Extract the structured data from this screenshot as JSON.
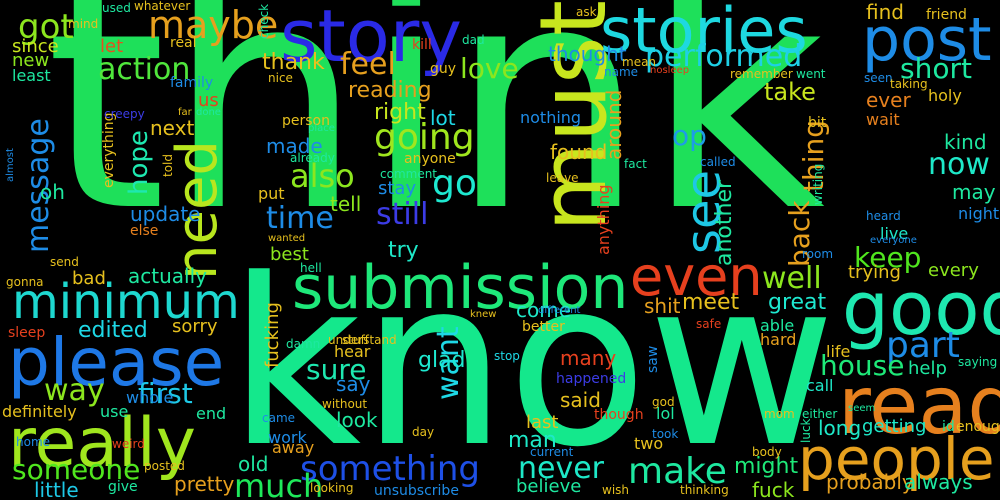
{
  "words": [
    {
      "t": "think",
      "c": "#1ee05a"
    },
    {
      "t": "know",
      "c": "#14e88c"
    },
    {
      "t": "must",
      "c": "#c8e61e"
    },
    {
      "t": "story",
      "c": "#2a2ae6"
    },
    {
      "t": "stories",
      "c": "#1ed8e0"
    },
    {
      "t": "post",
      "c": "#1e8ce6"
    },
    {
      "t": "submission",
      "c": "#1ee87a"
    },
    {
      "t": "minimum",
      "c": "#1ed8d0"
    },
    {
      "t": "please",
      "c": "#1e78e6"
    },
    {
      "t": "really",
      "c": "#a0e61e"
    },
    {
      "t": "good",
      "c": "#1ee8b0"
    },
    {
      "t": "read",
      "c": "#e6801e"
    },
    {
      "t": "people",
      "c": "#e6a01e"
    },
    {
      "t": "even",
      "c": "#e6401e"
    },
    {
      "t": "need",
      "c": "#b8e61e"
    },
    {
      "t": "see",
      "c": "#1ec8e6"
    },
    {
      "t": "maybe",
      "c": "#e6a01e"
    },
    {
      "t": "got",
      "c": "#8ce61e"
    },
    {
      "t": "action",
      "c": "#50e63c"
    },
    {
      "t": "performed",
      "c": "#1ed0e6"
    },
    {
      "t": "short",
      "c": "#1ee8a0"
    },
    {
      "t": "feel",
      "c": "#e6a01e"
    },
    {
      "t": "love",
      "c": "#8ce61e"
    },
    {
      "t": "going",
      "c": "#a0e61e"
    },
    {
      "t": "also",
      "c": "#8ce61e"
    },
    {
      "t": "go",
      "c": "#1ee8d0"
    },
    {
      "t": "still",
      "c": "#3c3ce6"
    },
    {
      "t": "time",
      "c": "#1e8ce6"
    },
    {
      "t": "message",
      "c": "#1e8ce6"
    },
    {
      "t": "hope",
      "c": "#1ee8b0"
    },
    {
      "t": "something",
      "c": "#1e50e6"
    },
    {
      "t": "never",
      "c": "#1ee8c8"
    },
    {
      "t": "make",
      "c": "#1ee8a0"
    },
    {
      "t": "much",
      "c": "#1ee85a"
    },
    {
      "t": "someone",
      "c": "#50e61e"
    },
    {
      "t": "part",
      "c": "#1e8ce6"
    },
    {
      "t": "house",
      "c": "#1ee878"
    },
    {
      "t": "first",
      "c": "#1ec8e6"
    },
    {
      "t": "way",
      "c": "#8ce61e"
    },
    {
      "t": "sure",
      "c": "#1ee8b0"
    },
    {
      "t": "want",
      "c": "#1ed8e6"
    },
    {
      "t": "well",
      "c": "#8ce61e"
    },
    {
      "t": "keep",
      "c": "#50e61e"
    },
    {
      "t": "back",
      "c": "#e6a01e"
    },
    {
      "t": "thing",
      "c": "#e6a01e"
    },
    {
      "t": "now",
      "c": "#1ee8c8"
    },
    {
      "t": "op",
      "c": "#1e9ce6"
    },
    {
      "t": "another",
      "c": "#1ee8a0"
    },
    {
      "t": "take",
      "c": "#c8e61e"
    },
    {
      "t": "ever",
      "c": "#e6801e"
    },
    {
      "t": "kind",
      "c": "#1ee8a0"
    },
    {
      "t": "may",
      "c": "#1ee8a0"
    },
    {
      "t": "find",
      "c": "#e6c01e"
    },
    {
      "t": "thought",
      "c": "#1e8ce6"
    },
    {
      "t": "around",
      "c": "#e6a01e"
    },
    {
      "t": "found",
      "c": "#e6c01e"
    },
    {
      "t": "made",
      "c": "#1e8ce6"
    },
    {
      "t": "right",
      "c": "#c8e61e"
    },
    {
      "t": "reading",
      "c": "#e6a01e"
    },
    {
      "t": "lot",
      "c": "#1ed8e6"
    },
    {
      "t": "thank",
      "c": "#e6c01e"
    },
    {
      "t": "tell",
      "c": "#8ce61e"
    },
    {
      "t": "try",
      "c": "#1ee8c8"
    },
    {
      "t": "best",
      "c": "#8ce61e"
    },
    {
      "t": "update",
      "c": "#1e8ce6"
    },
    {
      "t": "next",
      "c": "#e6c01e"
    },
    {
      "t": "oh",
      "c": "#1ee8a0"
    },
    {
      "t": "new",
      "c": "#8ce61e"
    },
    {
      "t": "since",
      "c": "#c8e61e"
    },
    {
      "t": "let",
      "c": "#e6501e"
    },
    {
      "t": "least",
      "c": "#1ee8a0"
    },
    {
      "t": "us",
      "c": "#e6401e"
    },
    {
      "t": "great",
      "c": "#1ee8d0"
    },
    {
      "t": "meet",
      "c": "#e6c01e"
    },
    {
      "t": "come",
      "c": "#1ee8c8"
    },
    {
      "t": "shit",
      "c": "#e6a01e"
    },
    {
      "t": "trying",
      "c": "#e6c01e"
    },
    {
      "t": "every",
      "c": "#8ce61e"
    },
    {
      "t": "actually",
      "c": "#1ee8a0"
    },
    {
      "t": "bad",
      "c": "#e6c01e"
    },
    {
      "t": "edited",
      "c": "#1ed8e6"
    },
    {
      "t": "sorry",
      "c": "#e6c01e"
    },
    {
      "t": "say",
      "c": "#1e8ce6"
    },
    {
      "t": "look",
      "c": "#1ee8a0"
    },
    {
      "t": "glad",
      "c": "#1ee8d0"
    },
    {
      "t": "many",
      "c": "#e6401e"
    },
    {
      "t": "said",
      "c": "#e6c01e"
    },
    {
      "t": "help",
      "c": "#1ee8a0"
    },
    {
      "t": "might",
      "c": "#1ee878"
    },
    {
      "t": "long",
      "c": "#1ee8c8"
    },
    {
      "t": "fuck",
      "c": "#8ce61e"
    },
    {
      "t": "probably",
      "c": "#e6a01e"
    },
    {
      "t": "always",
      "c": "#1ee8a0"
    },
    {
      "t": "getting",
      "c": "#1ee8c8"
    },
    {
      "t": "old",
      "c": "#1ee8a0"
    },
    {
      "t": "man",
      "c": "#1ee8c8"
    },
    {
      "t": "little",
      "c": "#1ec8e6"
    },
    {
      "t": "pretty",
      "c": "#e6a01e"
    },
    {
      "t": "believe",
      "c": "#1ee8a0"
    },
    {
      "t": "definitely",
      "c": "#e6c01e"
    },
    {
      "t": "fucking",
      "c": "#e6c01e"
    },
    {
      "t": "last",
      "c": "#e6c01e"
    },
    {
      "t": "two",
      "c": "#e6c01e"
    },
    {
      "t": "lol",
      "c": "#1ee8a0"
    },
    {
      "t": "whole",
      "c": "#1e8ce6"
    },
    {
      "t": "end",
      "c": "#1ee8a0"
    },
    {
      "t": "use",
      "c": "#1ee8a0"
    },
    {
      "t": "wait",
      "c": "#e6801e"
    },
    {
      "t": "holy",
      "c": "#e6c01e"
    },
    {
      "t": "live",
      "c": "#1ee8c8"
    },
    {
      "t": "night",
      "c": "#1e8ce6"
    },
    {
      "t": "life",
      "c": "#e6c01e"
    },
    {
      "t": "call",
      "c": "#1ee8c8"
    },
    {
      "t": "able",
      "c": "#1ee8a0"
    },
    {
      "t": "hard",
      "c": "#e6a01e"
    },
    {
      "t": "stay",
      "c": "#1e8ce6"
    },
    {
      "t": "put",
      "c": "#e6c01e"
    },
    {
      "t": "anything",
      "c": "#e6401e"
    },
    {
      "t": "everything",
      "c": "#e6c01e"
    },
    {
      "t": "hear",
      "c": "#e6c01e"
    },
    {
      "t": "work",
      "c": "#1e8ce6"
    },
    {
      "t": "away",
      "c": "#e6a01e"
    },
    {
      "t": "saw",
      "c": "#1e8ce6"
    },
    {
      "t": "stop",
      "c": "#1ed8e6"
    },
    {
      "t": "happened",
      "c": "#3c3ce6"
    },
    {
      "t": "nothing",
      "c": "#1e8ce6"
    },
    {
      "t": "else",
      "c": "#e6801e"
    },
    {
      "t": "creepy",
      "c": "#3c3ce6"
    },
    {
      "t": "family",
      "c": "#1e8ce6"
    },
    {
      "t": "real",
      "c": "#e6c01e"
    },
    {
      "t": "used",
      "c": "#1ee8a0"
    },
    {
      "t": "whatever",
      "c": "#e6c01e"
    },
    {
      "t": "mind",
      "c": "#e6c01e"
    },
    {
      "t": "kill",
      "c": "#e6401e"
    },
    {
      "t": "dad",
      "c": "#1ee8a0"
    },
    {
      "t": "ask",
      "c": "#e6c01e"
    },
    {
      "t": "friend",
      "c": "#e6c01e"
    },
    {
      "t": "check",
      "c": "#1ee8a0"
    },
    {
      "t": "guy",
      "c": "#e6c01e"
    },
    {
      "t": "name",
      "c": "#1e8ce6"
    },
    {
      "t": "mean",
      "c": "#e6c01e"
    },
    {
      "t": "nosleep",
      "c": "#e6401e"
    },
    {
      "t": "remember",
      "c": "#e6c01e"
    },
    {
      "t": "went",
      "c": "#1ee8a0"
    },
    {
      "t": "seen",
      "c": "#1e8ce6"
    },
    {
      "t": "taking",
      "c": "#e6c01e"
    },
    {
      "t": "person",
      "c": "#e6c01e"
    },
    {
      "t": "place",
      "c": "#1ee8a0"
    },
    {
      "t": "already",
      "c": "#1ee8a0"
    },
    {
      "t": "anyone",
      "c": "#e6c01e"
    },
    {
      "t": "comment",
      "c": "#1ee8a0"
    },
    {
      "t": "leave",
      "c": "#e6c01e"
    },
    {
      "t": "fact",
      "c": "#1ee8a0"
    },
    {
      "t": "called",
      "c": "#1e8ce6"
    },
    {
      "t": "bit",
      "c": "#e6c01e"
    },
    {
      "t": "writing",
      "c": "#1ee8a0"
    },
    {
      "t": "heard",
      "c": "#1e8ce6"
    },
    {
      "t": "everyone",
      "c": "#1e8ce6"
    },
    {
      "t": "room",
      "c": "#1e8ce6"
    },
    {
      "t": "seem",
      "c": "#1ee8a0"
    },
    {
      "t": "nice",
      "c": "#e6c01e"
    },
    {
      "t": "far",
      "c": "#e6c01e"
    },
    {
      "t": "done",
      "c": "#1ee8a0"
    },
    {
      "t": "told",
      "c": "#e6c01e"
    },
    {
      "t": "almost",
      "c": "#1e8ce6"
    },
    {
      "t": "gonna",
      "c": "#e6c01e"
    },
    {
      "t": "send",
      "c": "#e6c01e"
    },
    {
      "t": "sleep",
      "c": "#e6401e"
    },
    {
      "t": "wanted",
      "c": "#e6c01e"
    },
    {
      "t": "hell",
      "c": "#1ee8a0"
    },
    {
      "t": "damn",
      "c": "#1ee8a0"
    },
    {
      "t": "understand",
      "c": "#e6c01e"
    },
    {
      "t": "knew",
      "c": "#e6c01e"
    },
    {
      "t": "different",
      "c": "#1e8ce6"
    },
    {
      "t": "better",
      "c": "#e6c01e"
    },
    {
      "t": "safe",
      "c": "#e6401e"
    },
    {
      "t": "stuff",
      "c": "#e6c01e"
    },
    {
      "t": "without",
      "c": "#e6c01e"
    },
    {
      "t": "came",
      "c": "#1e8ce6"
    },
    {
      "t": "day",
      "c": "#e6c01e"
    },
    {
      "t": "god",
      "c": "#e6c01e"
    },
    {
      "t": "took",
      "c": "#1e8ce6"
    },
    {
      "t": "though",
      "c": "#e6401e"
    },
    {
      "t": "mom",
      "c": "#e6c01e"
    },
    {
      "t": "either",
      "c": "#1ee8a0"
    },
    {
      "t": "luck",
      "c": "#1ee8a0"
    },
    {
      "t": "body",
      "c": "#e6c01e"
    },
    {
      "t": "id",
      "c": "#1ee8a0"
    },
    {
      "t": "enough",
      "c": "#e6c01e"
    },
    {
      "t": "saying",
      "c": "#1ee8a0"
    },
    {
      "t": "current",
      "c": "#1e8ce6"
    },
    {
      "t": "home",
      "c": "#1e8ce6"
    },
    {
      "t": "weird",
      "c": "#e6401e"
    },
    {
      "t": "posted",
      "c": "#e6c01e"
    },
    {
      "t": "give",
      "c": "#1ee8a0"
    },
    {
      "t": "looking",
      "c": "#e6c01e"
    },
    {
      "t": "unsubscribe",
      "c": "#1e8ce6"
    },
    {
      "t": "wish",
      "c": "#e6c01e"
    },
    {
      "t": "thinking",
      "c": "#e6c01e"
    }
  ]
}
